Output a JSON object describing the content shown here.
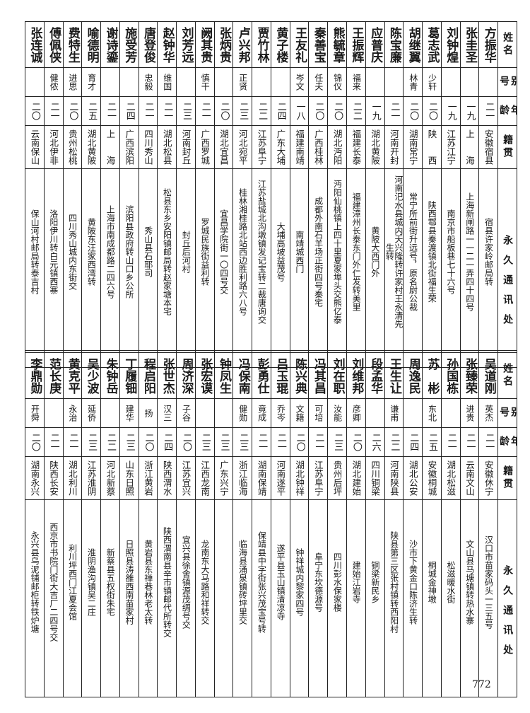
{
  "headers": {
    "name": "姓名",
    "alias": "别号",
    "age": "年龄",
    "native": "籍贯",
    "address": "永久通讯处"
  },
  "top": [
    {
      "name": "方振华",
      "alias": "",
      "age": "二一",
      "native": "安徽宿县",
      "address": "宿县许家岭邮局转"
    },
    {
      "name": "张圭圣",
      "alias": "",
      "age": "一九",
      "native": "上　　海",
      "address": "上海新闸路一一二一弄四十四号"
    },
    {
      "name": "刘钟煌",
      "alias": "",
      "age": "一九",
      "native": "江苏江宁",
      "address": "南京市船板巷七十六号"
    },
    {
      "name": "葛志武",
      "alias": "少轩",
      "age": "二〇",
      "native": "陕　　西",
      "address": "陕西鄠县秦渡镇北街福生荣"
    },
    {
      "name": "胡继翼",
      "alias": "林青",
      "age": "二〇",
      "native": "湖南常宁",
      "address": "常宁所前街升远号，原名尉公裁"
    },
    {
      "name": "陈宝廉",
      "alias": "",
      "age": "二一",
      "native": "河南开封",
      "address": "河南汜水县城内天兴隆转许家村王永清先生转"
    },
    {
      "name": "应普庆",
      "alias": "",
      "age": "一九",
      "native": "湖北黄陂",
      "address": "黄陂大西门外"
    },
    {
      "name": "王振辉",
      "alias": "福来",
      "age": "二二",
      "native": "福建长泰",
      "address": "福建漳州长泰东门外仁发转美里"
    },
    {
      "name": "熊毓章",
      "alias": "锦仪",
      "age": "二〇",
      "native": "湖北沔阳",
      "address": "沔阳仙桃镇上四十里夏家埠头交熊亿泰"
    },
    {
      "name": "秦善宝",
      "alias": "任夫",
      "age": "二〇",
      "native": "广西桂林",
      "address": "成都外南石羊场正街四号秦宅"
    },
    {
      "name": "王友礼",
      "alias": "岑文",
      "age": "一八",
      "native": "福建南靖",
      "address": "南靖城西门"
    },
    {
      "name": "黄子楼",
      "alias": "",
      "age": "二四",
      "native": "广东大埔",
      "address": "大埔高坡益茂号"
    },
    {
      "name": "贾竹林",
      "alias": "",
      "age": "二二",
      "native": "江苏阜宁",
      "address": "江苏盐城北沟墩镇发记宝转二裁唐询交"
    },
    {
      "name": "卢兴邦",
      "alias": "正贤",
      "age": "二三",
      "native": "河北宛平",
      "address": "桂林湘桂路北站西边胜利路六八号"
    },
    {
      "name": "张炳贵",
      "alias": "",
      "age": "二〇",
      "native": "湖北宜昌",
      "address": "宜昌学院街一〇四号交"
    },
    {
      "name": "阙其贵",
      "alias": "慎干",
      "age": "二一",
      "native": "广西罗城",
      "address": "罗城民族街益利转"
    },
    {
      "name": "刘芳远",
      "alias": "",
      "age": "二三",
      "native": "河南封丘",
      "address": "封丘后河村"
    },
    {
      "name": "赵钟华",
      "alias": "维国",
      "age": "二一",
      "native": "湖北松县",
      "address": "松县东乡安阳镇邮局转赵家塘本宅"
    },
    {
      "name": "唐登俊",
      "alias": "忠毅",
      "age": "二一",
      "native": "四川秀山",
      "address": "秀山县石耶司"
    },
    {
      "name": "施受芳",
      "alias": "",
      "age": "二四",
      "native": "广西滨阳",
      "address": "滨阳县政府转山口乡公所"
    },
    {
      "name": "谢诗鎏",
      "alias": "",
      "age": "二一",
      "native": "上　　海",
      "address": "上海市南成都路二四六号"
    },
    {
      "name": "喻德明",
      "alias": "育才",
      "age": "二五",
      "native": "湖北黄陂",
      "address": "黄陂东汪家西湾转"
    },
    {
      "name": "费特生",
      "alias": "进思",
      "age": "二〇",
      "native": "贵州松桃",
      "address": "四川秀山城内东街交"
    },
    {
      "name": "傅佩侠",
      "alias": "健侬",
      "age": "二一",
      "native": "河北伊非",
      "address": "洛阳伊川转白元镇西寨"
    },
    {
      "name": "张连诚",
      "alias": "",
      "age": "二〇",
      "native": "云南保山",
      "address": "保山河村邮局转泰吉村"
    }
  ],
  "bottom": [
    {
      "name": "吴道刚",
      "alias": "英杰",
      "age": "二一",
      "native": "安徽休宁",
      "address": "汉口市苗家码头一三五号"
    },
    {
      "name": "张臻荣",
      "alias": "进贵",
      "age": "二一",
      "native": "云南文山",
      "address": "文山县马塘镇转热水寨"
    },
    {
      "name": "孙国栋",
      "alias": "",
      "age": "二一",
      "native": "湖北松滋",
      "address": "松滋暖水街"
    },
    {
      "name": "苏　彬",
      "alias": "东北",
      "age": "二五",
      "native": "安徽桐城",
      "address": "桐城金神墩"
    },
    {
      "name": "周逸民",
      "alias": "",
      "age": "二四",
      "native": "湖北公安",
      "address": "沙市下黄金口陈济生转"
    },
    {
      "name": "王生让",
      "alias": "谦甫",
      "age": "二二",
      "native": "河南陕县",
      "address": "陕县第三区张村镇转西阳村"
    },
    {
      "name": "段孟华",
      "alias": "",
      "age": "二六",
      "native": "四川铜梁",
      "address": "铜梁新民乡"
    },
    {
      "name": "刘维邦",
      "alias": "彦卿",
      "age": "二〇",
      "native": "湖北建始",
      "address": "建始江岩寺"
    },
    {
      "name": "刘在职",
      "alias": "汝能",
      "age": "二三",
      "native": "贵州后坪",
      "address": "四川彭水保家楼"
    },
    {
      "name": "冯其昌",
      "alias": "可培",
      "age": "二一",
      "native": "江苏阜宁",
      "address": "阜宁东坎德源号"
    },
    {
      "name": "陈兴典",
      "alias": "文籍",
      "age": "二〇",
      "native": "湖北钟祥",
      "address": "钟祥城内黎家四号"
    },
    {
      "name": "吕玉琨",
      "alias": "乔岑",
      "age": "二一",
      "native": "河南遂平",
      "address": "遂平县玉山镇清凉寺"
    },
    {
      "name": "彭勇仕",
      "alias": "竟成",
      "age": "二一",
      "native": "湖南保靖",
      "address": "保靖县中字街张兴茂宝号转"
    },
    {
      "name": "冯保南",
      "alias": "健勋",
      "age": "二三",
      "native": "浙江临海",
      "address": "临海县涌泉镇砖坪里交"
    },
    {
      "name": "钟凤生",
      "alias": "",
      "age": "二三",
      "native": "广东兴宁",
      "address": ""
    },
    {
      "name": "张宏谟",
      "alias": "",
      "age": "二三",
      "native": "江西龙南",
      "address": "龙南东大马路和祥转交"
    },
    {
      "name": "周济深",
      "alias": "子谷",
      "age": "二〇",
      "native": "江苏宜兴",
      "address": "宜兴县徐舍镇源茂绸号交"
    },
    {
      "name": "张世杰",
      "alias": "汉三",
      "age": "二四",
      "native": "陕西渭水",
      "address": "陕西渭南县辛市镇邮代所转交"
    },
    {
      "name": "程启阳",
      "alias": "扬",
      "age": "二〇",
      "native": "浙江黄岩",
      "address": "黄岩县东禅巷林老太转"
    },
    {
      "name": "丁履钿",
      "alias": "建华",
      "age": "二三",
      "native": "山东日照",
      "address": "日照县涛雒西南苗家村"
    },
    {
      "name": "朱钟岳",
      "alias": "",
      "age": "二二",
      "native": "河北新蔡",
      "address": "新蔡县五权街朱宅"
    },
    {
      "name": "吴少波",
      "alias": "延侨",
      "age": "二三",
      "native": "江苏淮阴",
      "address": "淮阴渔沟镇吴二庄"
    },
    {
      "name": "黄克平",
      "alias": "永治",
      "age": "二一",
      "native": "湖北利川",
      "address": "利川坪西门江夏会馆"
    },
    {
      "name": "范长庚",
      "alias": "",
      "age": "二一",
      "native": "陕西长安",
      "address": "西京市书院门街大吉厂二四号交"
    },
    {
      "name": "李鼎勋",
      "alias": "开舜",
      "age": "二〇",
      "native": "湖南永兴",
      "address": "永兴县乌泥铺邮柜转铁炉塘"
    }
  ],
  "page_number": "772"
}
